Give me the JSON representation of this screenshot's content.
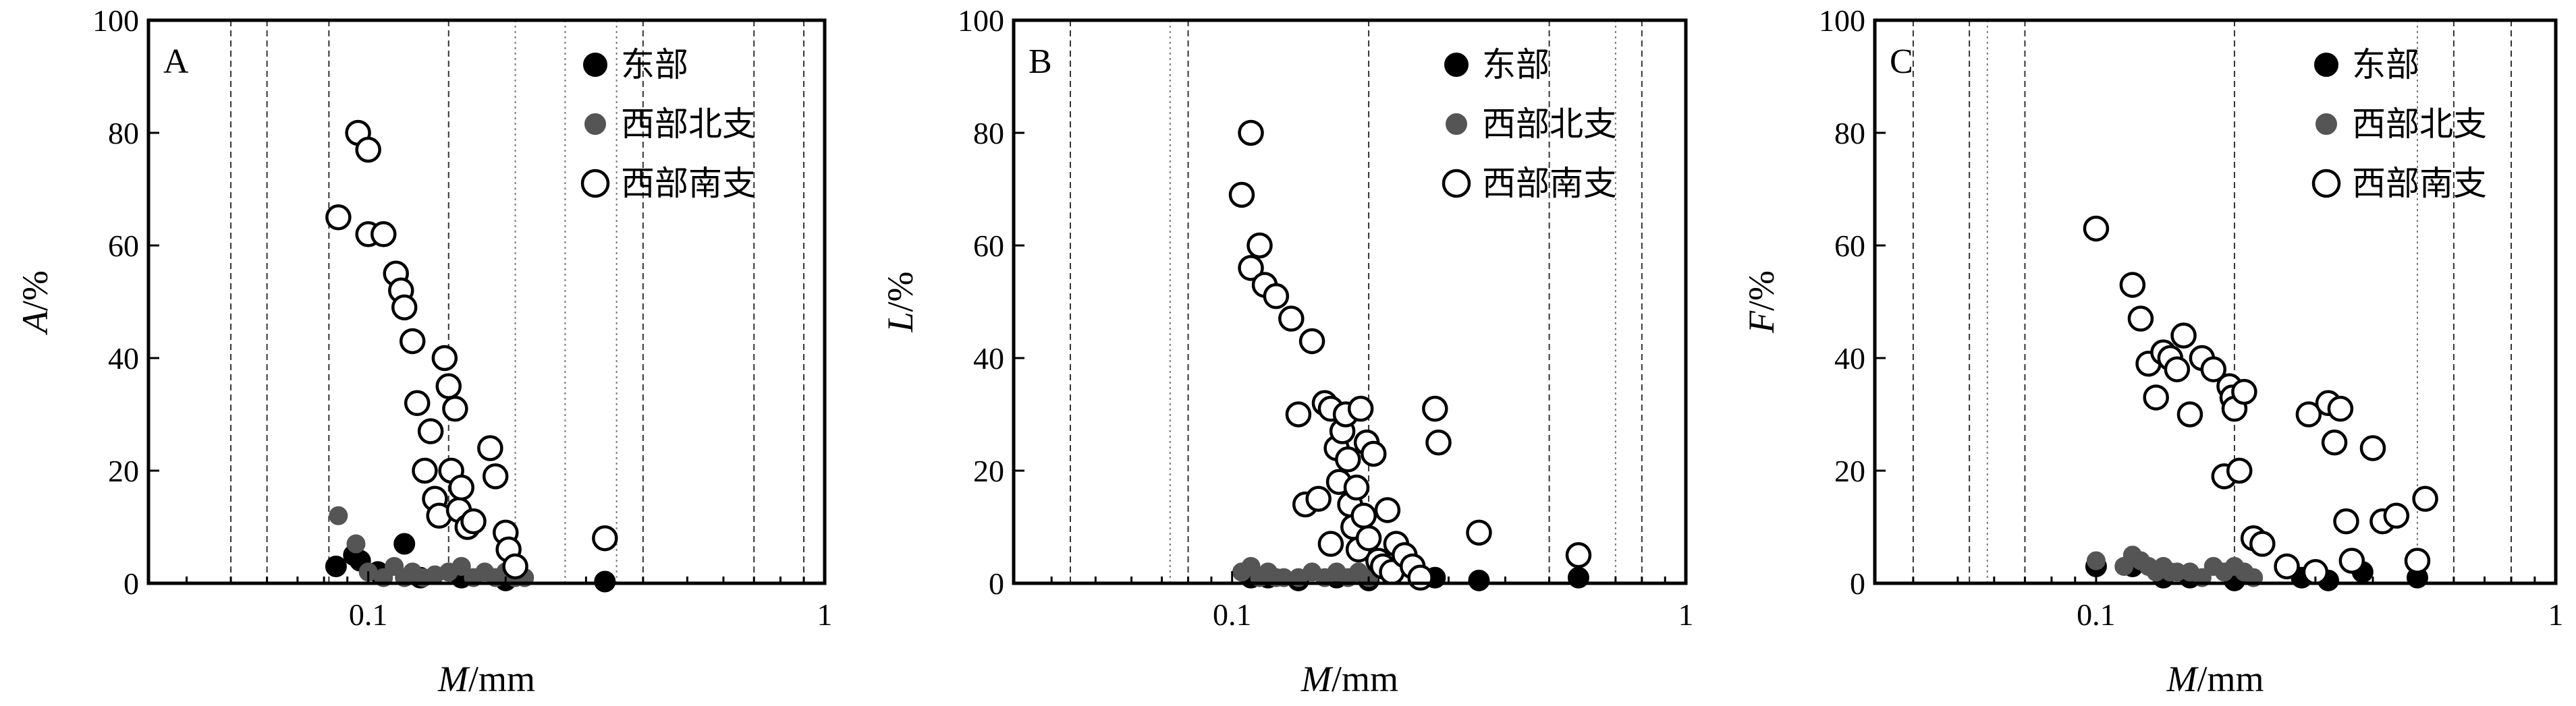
{
  "chart_data": [
    {
      "type": "scatter",
      "panel_label": "A",
      "xlabel": "M/mm",
      "ylabel": "A/%",
      "x_scale": "log",
      "xlim": [
        0.033,
        1
      ],
      "ylim": [
        0,
        100
      ],
      "x_ticks": [
        {
          "value": 0.1,
          "label": "0.1"
        },
        {
          "value": 1,
          "label": "1"
        }
      ],
      "y_ticks": [
        0,
        20,
        40,
        60,
        80,
        100
      ],
      "grid_lines": {
        "dashed": [
          0.05,
          0.06,
          0.082,
          0.15,
          0.4,
          0.7,
          0.9
        ],
        "dotted": [
          0.21,
          0.27,
          0.35
        ]
      },
      "legend_placement": "top-right",
      "legend": [
        "东部",
        "西部北支",
        "西部南支"
      ],
      "series": [
        {
          "name": "东部",
          "style": "black-filled",
          "points": [
            [
              0.085,
              3
            ],
            [
              0.093,
              5
            ],
            [
              0.096,
              4
            ],
            [
              0.105,
              2
            ],
            [
              0.12,
              7
            ],
            [
              0.13,
              1
            ],
            [
              0.16,
              1
            ],
            [
              0.2,
              0.5
            ],
            [
              0.33,
              0.3
            ]
          ]
        },
        {
          "name": "西部北支",
          "style": "gray-filled",
          "points": [
            [
              0.086,
              12
            ],
            [
              0.094,
              7
            ],
            [
              0.1,
              2
            ],
            [
              0.108,
              1
            ],
            [
              0.114,
              3
            ],
            [
              0.12,
              1
            ],
            [
              0.125,
              2
            ],
            [
              0.132,
              1
            ],
            [
              0.14,
              1.5
            ],
            [
              0.15,
              2
            ],
            [
              0.16,
              3
            ],
            [
              0.17,
              1
            ],
            [
              0.18,
              2
            ],
            [
              0.19,
              1
            ],
            [
              0.2,
              2
            ],
            [
              0.21,
              1
            ],
            [
              0.22,
              1
            ]
          ]
        },
        {
          "name": "西部南支",
          "style": "open",
          "points": [
            [
              0.086,
              65
            ],
            [
              0.095,
              80
            ],
            [
              0.1,
              62
            ],
            [
              0.1,
              77
            ],
            [
              0.108,
              62
            ],
            [
              0.115,
              55
            ],
            [
              0.118,
              52
            ],
            [
              0.12,
              49
            ],
            [
              0.125,
              43
            ],
            [
              0.128,
              32
            ],
            [
              0.133,
              20
            ],
            [
              0.137,
              27
            ],
            [
              0.14,
              15
            ],
            [
              0.143,
              12
            ],
            [
              0.147,
              40
            ],
            [
              0.15,
              35
            ],
            [
              0.152,
              20
            ],
            [
              0.155,
              31
            ],
            [
              0.158,
              13
            ],
            [
              0.16,
              17
            ],
            [
              0.165,
              10
            ],
            [
              0.17,
              11
            ],
            [
              0.185,
              24
            ],
            [
              0.19,
              19
            ],
            [
              0.2,
              9
            ],
            [
              0.203,
              6
            ],
            [
              0.21,
              3
            ],
            [
              0.33,
              8
            ]
          ]
        }
      ]
    },
    {
      "type": "scatter",
      "panel_label": "B",
      "xlabel": "M/mm",
      "ylabel": "L/%",
      "x_scale": "log",
      "xlim": [
        0.033,
        1
      ],
      "ylim": [
        0,
        100
      ],
      "x_ticks": [
        {
          "value": 0.1,
          "label": "0.1"
        },
        {
          "value": 1,
          "label": "1"
        }
      ],
      "y_ticks": [
        0,
        20,
        40,
        60,
        80,
        100
      ],
      "grid_lines": {
        "dashed": [
          0.044,
          0.08,
          0.2,
          0.5,
          0.8
        ],
        "dotted": [
          0.073,
          0.7
        ]
      },
      "legend_placement": "top-right",
      "legend": [
        "东部",
        "西部北支",
        "西部南支"
      ],
      "series": [
        {
          "name": "东部",
          "style": "black-filled",
          "points": [
            [
              0.11,
              1
            ],
            [
              0.12,
              1
            ],
            [
              0.14,
              0.5
            ],
            [
              0.17,
              1
            ],
            [
              0.2,
              0.5
            ],
            [
              0.28,
              1
            ],
            [
              0.35,
              0.5
            ],
            [
              0.58,
              1
            ]
          ]
        },
        {
          "name": "西部北支",
          "style": "gray-filled",
          "points": [
            [
              0.105,
              2
            ],
            [
              0.11,
              3
            ],
            [
              0.115,
              1
            ],
            [
              0.12,
              2
            ],
            [
              0.125,
              1
            ],
            [
              0.13,
              1
            ],
            [
              0.14,
              1
            ],
            [
              0.15,
              2
            ],
            [
              0.16,
              1
            ],
            [
              0.17,
              2
            ],
            [
              0.18,
              1
            ],
            [
              0.19,
              2
            ],
            [
              0.2,
              1
            ]
          ]
        },
        {
          "name": "西部南支",
          "style": "open",
          "points": [
            [
              0.105,
              69
            ],
            [
              0.11,
              80
            ],
            [
              0.11,
              56
            ],
            [
              0.115,
              60
            ],
            [
              0.118,
              53
            ],
            [
              0.125,
              51
            ],
            [
              0.135,
              47
            ],
            [
              0.14,
              30
            ],
            [
              0.145,
              14
            ],
            [
              0.15,
              43
            ],
            [
              0.155,
              15
            ],
            [
              0.16,
              32
            ],
            [
              0.165,
              31
            ],
            [
              0.165,
              7
            ],
            [
              0.17,
              24
            ],
            [
              0.172,
              18
            ],
            [
              0.175,
              27
            ],
            [
              0.178,
              30
            ],
            [
              0.18,
              22
            ],
            [
              0.182,
              14
            ],
            [
              0.185,
              10
            ],
            [
              0.188,
              17
            ],
            [
              0.19,
              6
            ],
            [
              0.192,
              31
            ],
            [
              0.195,
              12
            ],
            [
              0.198,
              25
            ],
            [
              0.2,
              8
            ],
            [
              0.205,
              23
            ],
            [
              0.21,
              4
            ],
            [
              0.215,
              3
            ],
            [
              0.22,
              13
            ],
            [
              0.225,
              2
            ],
            [
              0.23,
              7
            ],
            [
              0.24,
              5
            ],
            [
              0.25,
              3
            ],
            [
              0.26,
              1
            ],
            [
              0.28,
              31
            ],
            [
              0.285,
              25
            ],
            [
              0.35,
              9
            ],
            [
              0.58,
              5
            ]
          ]
        }
      ]
    },
    {
      "type": "scatter",
      "panel_label": "C",
      "xlabel": "M/mm",
      "ylabel": "F/%",
      "x_scale": "log",
      "xlim": [
        0.033,
        1
      ],
      "ylim": [
        0,
        100
      ],
      "x_ticks": [
        {
          "value": 0.1,
          "label": "0.1"
        },
        {
          "value": 1,
          "label": "1"
        }
      ],
      "y_ticks": [
        0,
        20,
        40,
        60,
        80,
        100
      ],
      "grid_lines": {
        "dashed": [
          0.04,
          0.053,
          0.07,
          0.2,
          0.6,
          0.8
        ],
        "dotted": [
          0.058,
          0.5
        ]
      },
      "legend_placement": "top-right",
      "legend": [
        "东部",
        "西部北支",
        "西部南支"
      ],
      "series": [
        {
          "name": "东部",
          "style": "black-filled",
          "points": [
            [
              0.1,
              3
            ],
            [
              0.12,
              3
            ],
            [
              0.14,
              1
            ],
            [
              0.16,
              1
            ],
            [
              0.2,
              0.5
            ],
            [
              0.28,
              1
            ],
            [
              0.32,
              0.5
            ],
            [
              0.38,
              2
            ],
            [
              0.5,
              1
            ]
          ]
        },
        {
          "name": "西部北支",
          "style": "gray-filled",
          "points": [
            [
              0.1,
              4
            ],
            [
              0.115,
              3
            ],
            [
              0.12,
              5
            ],
            [
              0.125,
              4
            ],
            [
              0.13,
              3
            ],
            [
              0.135,
              2
            ],
            [
              0.14,
              3
            ],
            [
              0.145,
              2
            ],
            [
              0.15,
              2
            ],
            [
              0.16,
              2
            ],
            [
              0.17,
              1
            ],
            [
              0.18,
              3
            ],
            [
              0.19,
              2
            ],
            [
              0.2,
              3
            ],
            [
              0.21,
              2
            ],
            [
              0.22,
              1
            ]
          ]
        },
        {
          "name": "西部南支",
          "style": "open",
          "points": [
            [
              0.1,
              63
            ],
            [
              0.12,
              53
            ],
            [
              0.125,
              47
            ],
            [
              0.13,
              39
            ],
            [
              0.135,
              33
            ],
            [
              0.14,
              41
            ],
            [
              0.145,
              40
            ],
            [
              0.15,
              38
            ],
            [
              0.155,
              44
            ],
            [
              0.16,
              30
            ],
            [
              0.17,
              40
            ],
            [
              0.18,
              38
            ],
            [
              0.19,
              19
            ],
            [
              0.195,
              35
            ],
            [
              0.198,
              33
            ],
            [
              0.2,
              31
            ],
            [
              0.205,
              20
            ],
            [
              0.21,
              34
            ],
            [
              0.22,
              8
            ],
            [
              0.23,
              7
            ],
            [
              0.26,
              3
            ],
            [
              0.29,
              30
            ],
            [
              0.3,
              2
            ],
            [
              0.32,
              32
            ],
            [
              0.33,
              25
            ],
            [
              0.34,
              31
            ],
            [
              0.35,
              11
            ],
            [
              0.36,
              4
            ],
            [
              0.4,
              24
            ],
            [
              0.42,
              11
            ],
            [
              0.45,
              12
            ],
            [
              0.5,
              4
            ],
            [
              0.52,
              15
            ]
          ]
        }
      ]
    }
  ]
}
